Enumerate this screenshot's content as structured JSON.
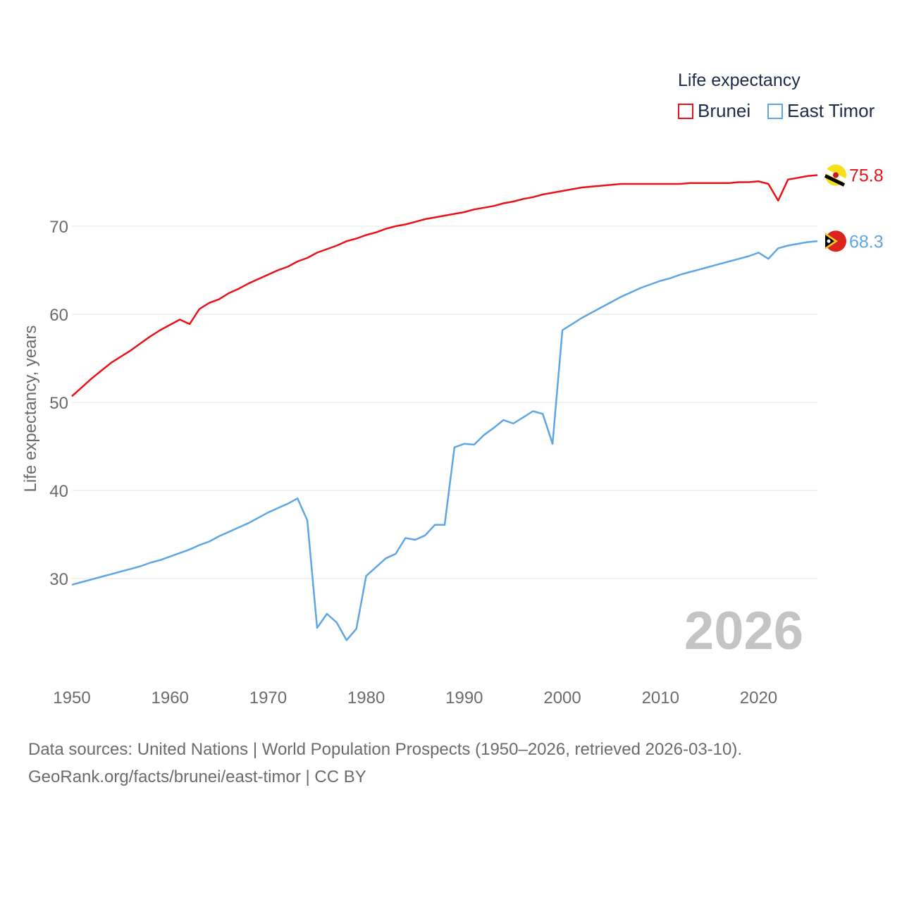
{
  "legend": {
    "title": "Life expectancy",
    "items": [
      {
        "label": "Brunei",
        "color": "#e8131a"
      },
      {
        "label": "East Timor",
        "color": "#5fa6e4"
      }
    ]
  },
  "current_year": "2026",
  "sources": {
    "line1": "Data sources: United Nations | World Population Prospects (1950–2026, retrieved 2026-03-10).",
    "line2": "GeoRank.org/facts/brunei/east-timor | CC BY"
  },
  "chart_data": {
    "type": "line",
    "title": "Life expectancy",
    "xlabel": "",
    "ylabel": "Life expectancy, years",
    "xlim": [
      1950,
      2026
    ],
    "ylim": [
      20,
      80
    ],
    "x_ticks": [
      1950,
      1960,
      1970,
      1980,
      1990,
      2000,
      2010,
      2020
    ],
    "y_ticks": [
      30,
      40,
      50,
      60,
      70
    ],
    "grid": true,
    "legend_position": "top-right",
    "series": [
      {
        "name": "Brunei",
        "color": "#e8131a",
        "end_label": "75.8",
        "flag_icon": "brunei-flag-icon",
        "x": [
          1950,
          1951,
          1952,
          1953,
          1954,
          1955,
          1956,
          1957,
          1958,
          1959,
          1960,
          1961,
          1962,
          1963,
          1964,
          1965,
          1966,
          1967,
          1968,
          1969,
          1970,
          1971,
          1972,
          1973,
          1974,
          1975,
          1976,
          1977,
          1978,
          1979,
          1980,
          1981,
          1982,
          1983,
          1984,
          1985,
          1986,
          1987,
          1988,
          1989,
          1990,
          1991,
          1992,
          1993,
          1994,
          1995,
          1996,
          1997,
          1998,
          1999,
          2000,
          2001,
          2002,
          2003,
          2004,
          2005,
          2006,
          2007,
          2008,
          2009,
          2010,
          2011,
          2012,
          2013,
          2014,
          2015,
          2016,
          2017,
          2018,
          2019,
          2020,
          2021,
          2022,
          2023,
          2024,
          2025,
          2026
        ],
        "values": [
          50.7,
          51.7,
          52.7,
          53.6,
          54.5,
          55.2,
          55.9,
          56.7,
          57.5,
          58.2,
          58.8,
          59.4,
          58.9,
          60.6,
          61.3,
          61.7,
          62.4,
          62.9,
          63.5,
          64.0,
          64.5,
          65.0,
          65.4,
          66.0,
          66.4,
          67.0,
          67.4,
          67.8,
          68.3,
          68.6,
          69.0,
          69.3,
          69.7,
          70.0,
          70.2,
          70.5,
          70.8,
          71.0,
          71.2,
          71.4,
          71.6,
          71.9,
          72.1,
          72.3,
          72.6,
          72.8,
          73.1,
          73.3,
          73.6,
          73.8,
          74.0,
          74.2,
          74.4,
          74.5,
          74.6,
          74.7,
          74.8,
          74.8,
          74.8,
          74.8,
          74.8,
          74.8,
          74.8,
          74.9,
          74.9,
          74.9,
          74.9,
          74.9,
          75.0,
          75.0,
          75.1,
          74.8,
          72.9,
          75.3,
          75.5,
          75.7,
          75.8
        ]
      },
      {
        "name": "East Timor",
        "color": "#5fa6e4",
        "end_label": "68.3",
        "flag_icon": "east-timor-flag-icon",
        "x": [
          1950,
          1951,
          1952,
          1953,
          1954,
          1955,
          1956,
          1957,
          1958,
          1959,
          1960,
          1961,
          1962,
          1963,
          1964,
          1965,
          1966,
          1967,
          1968,
          1969,
          1970,
          1971,
          1972,
          1973,
          1974,
          1975,
          1976,
          1977,
          1978,
          1979,
          1980,
          1981,
          1982,
          1983,
          1984,
          1985,
          1986,
          1987,
          1988,
          1989,
          1990,
          1991,
          1992,
          1993,
          1994,
          1995,
          1996,
          1997,
          1998,
          1999,
          2000,
          2001,
          2002,
          2003,
          2004,
          2005,
          2006,
          2007,
          2008,
          2009,
          2010,
          2011,
          2012,
          2013,
          2014,
          2015,
          2016,
          2017,
          2018,
          2019,
          2020,
          2021,
          2022,
          2023,
          2024,
          2025,
          2026
        ],
        "values": [
          29.3,
          29.6,
          29.9,
          30.2,
          30.5,
          30.8,
          31.1,
          31.4,
          31.8,
          32.1,
          32.5,
          32.9,
          33.3,
          33.8,
          34.2,
          34.8,
          35.3,
          35.8,
          36.3,
          36.9,
          37.5,
          38.0,
          38.5,
          39.1,
          36.6,
          24.4,
          26.0,
          25.0,
          23.0,
          24.3,
          30.3,
          31.3,
          32.3,
          32.8,
          34.6,
          34.4,
          34.9,
          36.1,
          36.1,
          44.9,
          45.3,
          45.2,
          46.3,
          47.1,
          48.0,
          47.6,
          48.3,
          49.0,
          48.7,
          45.3,
          58.2,
          58.9,
          59.6,
          60.2,
          60.8,
          61.4,
          62.0,
          62.5,
          63.0,
          63.4,
          63.8,
          64.1,
          64.5,
          64.8,
          65.1,
          65.4,
          65.7,
          66.0,
          66.3,
          66.6,
          67.0,
          66.3,
          67.5,
          67.8,
          68.0,
          68.2,
          68.3
        ]
      }
    ]
  }
}
